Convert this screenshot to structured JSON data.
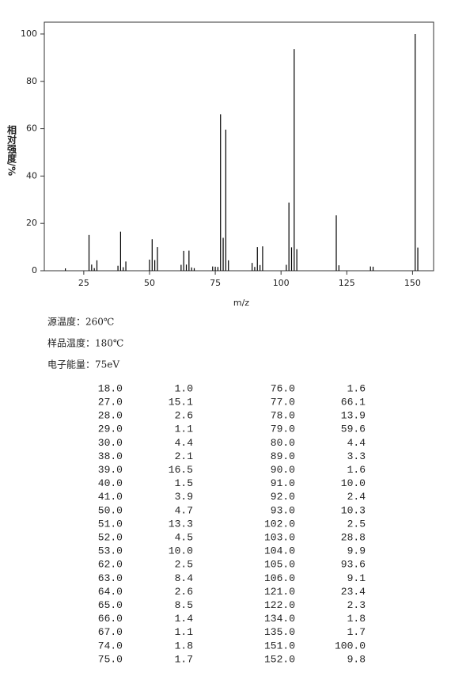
{
  "chart_data": {
    "type": "bar",
    "x_label": "m/z",
    "y_label": "相对强度/%",
    "x": [
      18,
      27,
      28,
      29,
      30,
      38,
      39,
      40,
      41,
      50,
      51,
      52,
      53,
      62,
      63,
      64,
      65,
      66,
      67,
      74,
      75,
      76,
      77,
      78,
      79,
      80,
      89,
      90,
      91,
      92,
      93,
      102,
      103,
      104,
      105,
      106,
      121,
      122,
      134,
      135,
      151,
      152
    ],
    "values": [
      1.0,
      15.1,
      2.6,
      1.1,
      4.4,
      2.1,
      16.5,
      1.5,
      3.9,
      4.7,
      13.3,
      4.5,
      10.0,
      2.5,
      8.4,
      2.6,
      8.5,
      1.4,
      1.1,
      1.8,
      1.7,
      1.6,
      66.1,
      13.9,
      59.6,
      4.4,
      3.3,
      1.6,
      10.0,
      2.4,
      10.3,
      2.5,
      28.8,
      9.9,
      93.6,
      9.1,
      23.4,
      2.3,
      1.8,
      1.7,
      100.0,
      9.8
    ],
    "color": "#000000",
    "xlim": [
      10,
      158
    ],
    "xticks": [
      25,
      50,
      75,
      100,
      125,
      150
    ],
    "ylim": [
      0,
      105
    ],
    "yticks": [
      0,
      20,
      40,
      60,
      80,
      100
    ]
  },
  "info": [
    "源温度：260℃",
    "样品温度：180℃",
    "电子能量：75eV"
  ],
  "table": {
    "rows": [
      [
        "18.0",
        "1.0",
        "76.0",
        "1.6"
      ],
      [
        "27.0",
        "15.1",
        "77.0",
        "66.1"
      ],
      [
        "28.0",
        "2.6",
        "78.0",
        "13.9"
      ],
      [
        "29.0",
        "1.1",
        "79.0",
        "59.6"
      ],
      [
        "30.0",
        "4.4",
        "80.0",
        "4.4"
      ],
      [
        "38.0",
        "2.1",
        "89.0",
        "3.3"
      ],
      [
        "39.0",
        "16.5",
        "90.0",
        "1.6"
      ],
      [
        "40.0",
        "1.5",
        "91.0",
        "10.0"
      ],
      [
        "41.0",
        "3.9",
        "92.0",
        "2.4"
      ],
      [
        "50.0",
        "4.7",
        "93.0",
        "10.3"
      ],
      [
        "51.0",
        "13.3",
        "102.0",
        "2.5"
      ],
      [
        "52.0",
        "4.5",
        "103.0",
        "28.8"
      ],
      [
        "53.0",
        "10.0",
        "104.0",
        "9.9"
      ],
      [
        "62.0",
        "2.5",
        "105.0",
        "93.6"
      ],
      [
        "63.0",
        "8.4",
        "106.0",
        "9.1"
      ],
      [
        "64.0",
        "2.6",
        "121.0",
        "23.4"
      ],
      [
        "65.0",
        "8.5",
        "122.0",
        "2.3"
      ],
      [
        "66.0",
        "1.4",
        "134.0",
        "1.8"
      ],
      [
        "67.0",
        "1.1",
        "135.0",
        "1.7"
      ],
      [
        "74.0",
        "1.8",
        "151.0",
        "100.0"
      ],
      [
        "75.0",
        "1.7",
        "152.0",
        "9.8"
      ]
    ]
  }
}
